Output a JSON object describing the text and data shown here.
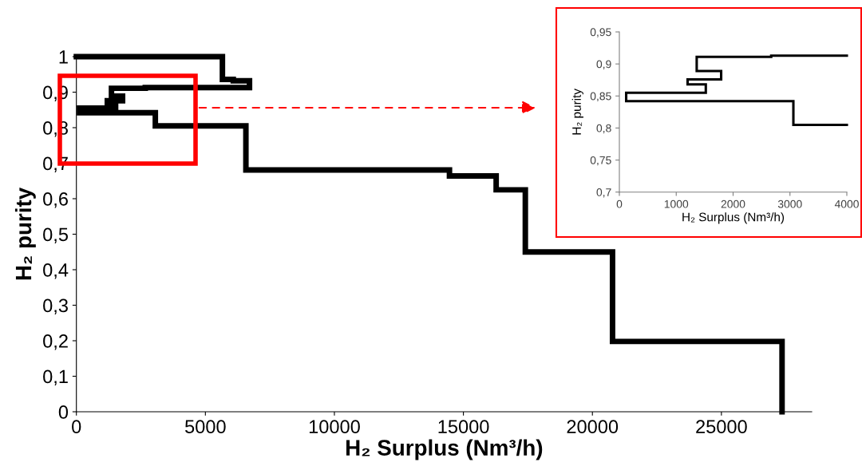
{
  "chart_data": [
    {
      "type": "line",
      "xlabel": "H₂ Surplus (Nm³/h)",
      "ylabel": "H₂ purity",
      "xlim": [
        0,
        28500
      ],
      "ylim": [
        0,
        1
      ],
      "xticks": [
        0,
        5000,
        10000,
        15000,
        20000,
        25000
      ],
      "yticks": [
        0,
        {
          "value": 0.1,
          "label": "0,1"
        },
        {
          "value": 0.2,
          "label": "0,2"
        },
        {
          "value": 0.3,
          "label": "0,3"
        },
        {
          "value": 0.4,
          "label": "0,4"
        },
        {
          "value": 0.5,
          "label": "0,5"
        },
        {
          "value": 0.6,
          "label": "0,6"
        },
        {
          "value": 0.7,
          "label": "0,7"
        },
        {
          "value": 0.8,
          "label": "0,8"
        },
        {
          "value": 0.9,
          "label": "0,9"
        },
        1
      ],
      "grid": false,
      "legend": false,
      "series": [
        {
          "color": "#000000",
          "x": [
            0,
            5660,
            5660,
            6080,
            6080,
            6710,
            6710,
            2670,
            2670,
            1360,
            1360,
            1790,
            1790,
            1200,
            1200,
            1520,
            1520,
            120,
            120,
            3060,
            3060,
            6570,
            6570,
            14460,
            14460,
            16270,
            16270,
            17400,
            17400,
            20780,
            20780,
            27350,
            27350
          ],
          "values": [
            1,
            1,
            0.936,
            0.936,
            0.932,
            0.932,
            0.913,
            0.913,
            0.911,
            0.911,
            0.889,
            0.889,
            0.876,
            0.876,
            0.868,
            0.868,
            0.855,
            0.855,
            0.842,
            0.842,
            0.805,
            0.805,
            0.681,
            0.681,
            0.664,
            0.664,
            0.625,
            0.625,
            0.45,
            0.45,
            0.198,
            0.198,
            0
          ]
        }
      ]
    },
    {
      "type": "line",
      "xlabel": "H₂ Surplus (Nm³/h)",
      "ylabel": "H₂ purity",
      "xlim": [
        0,
        4000
      ],
      "ylim": [
        0.7,
        0.95
      ],
      "xticks": [
        0,
        1000,
        2000,
        3000,
        4000
      ],
      "yticks": [
        {
          "value": 0.7,
          "label": "0,7"
        },
        {
          "value": 0.75,
          "label": "0,75"
        },
        {
          "value": 0.8,
          "label": "0,8"
        },
        {
          "value": 0.85,
          "label": "0,85"
        },
        {
          "value": 0.9,
          "label": "0,9"
        },
        {
          "value": 0.95,
          "label": "0,95"
        }
      ],
      "grid": false,
      "legend": false,
      "series": [
        {
          "color": "#000000",
          "x": [
            4000,
            2670,
            2670,
            1360,
            1360,
            1790,
            1790,
            1200,
            1200,
            1520,
            1520,
            120,
            120,
            3060,
            3060,
            4000
          ],
          "values": [
            0.913,
            0.913,
            0.911,
            0.911,
            0.889,
            0.889,
            0.876,
            0.876,
            0.868,
            0.868,
            0.855,
            0.855,
            0.842,
            0.842,
            0.805,
            0.805
          ]
        }
      ]
    }
  ]
}
